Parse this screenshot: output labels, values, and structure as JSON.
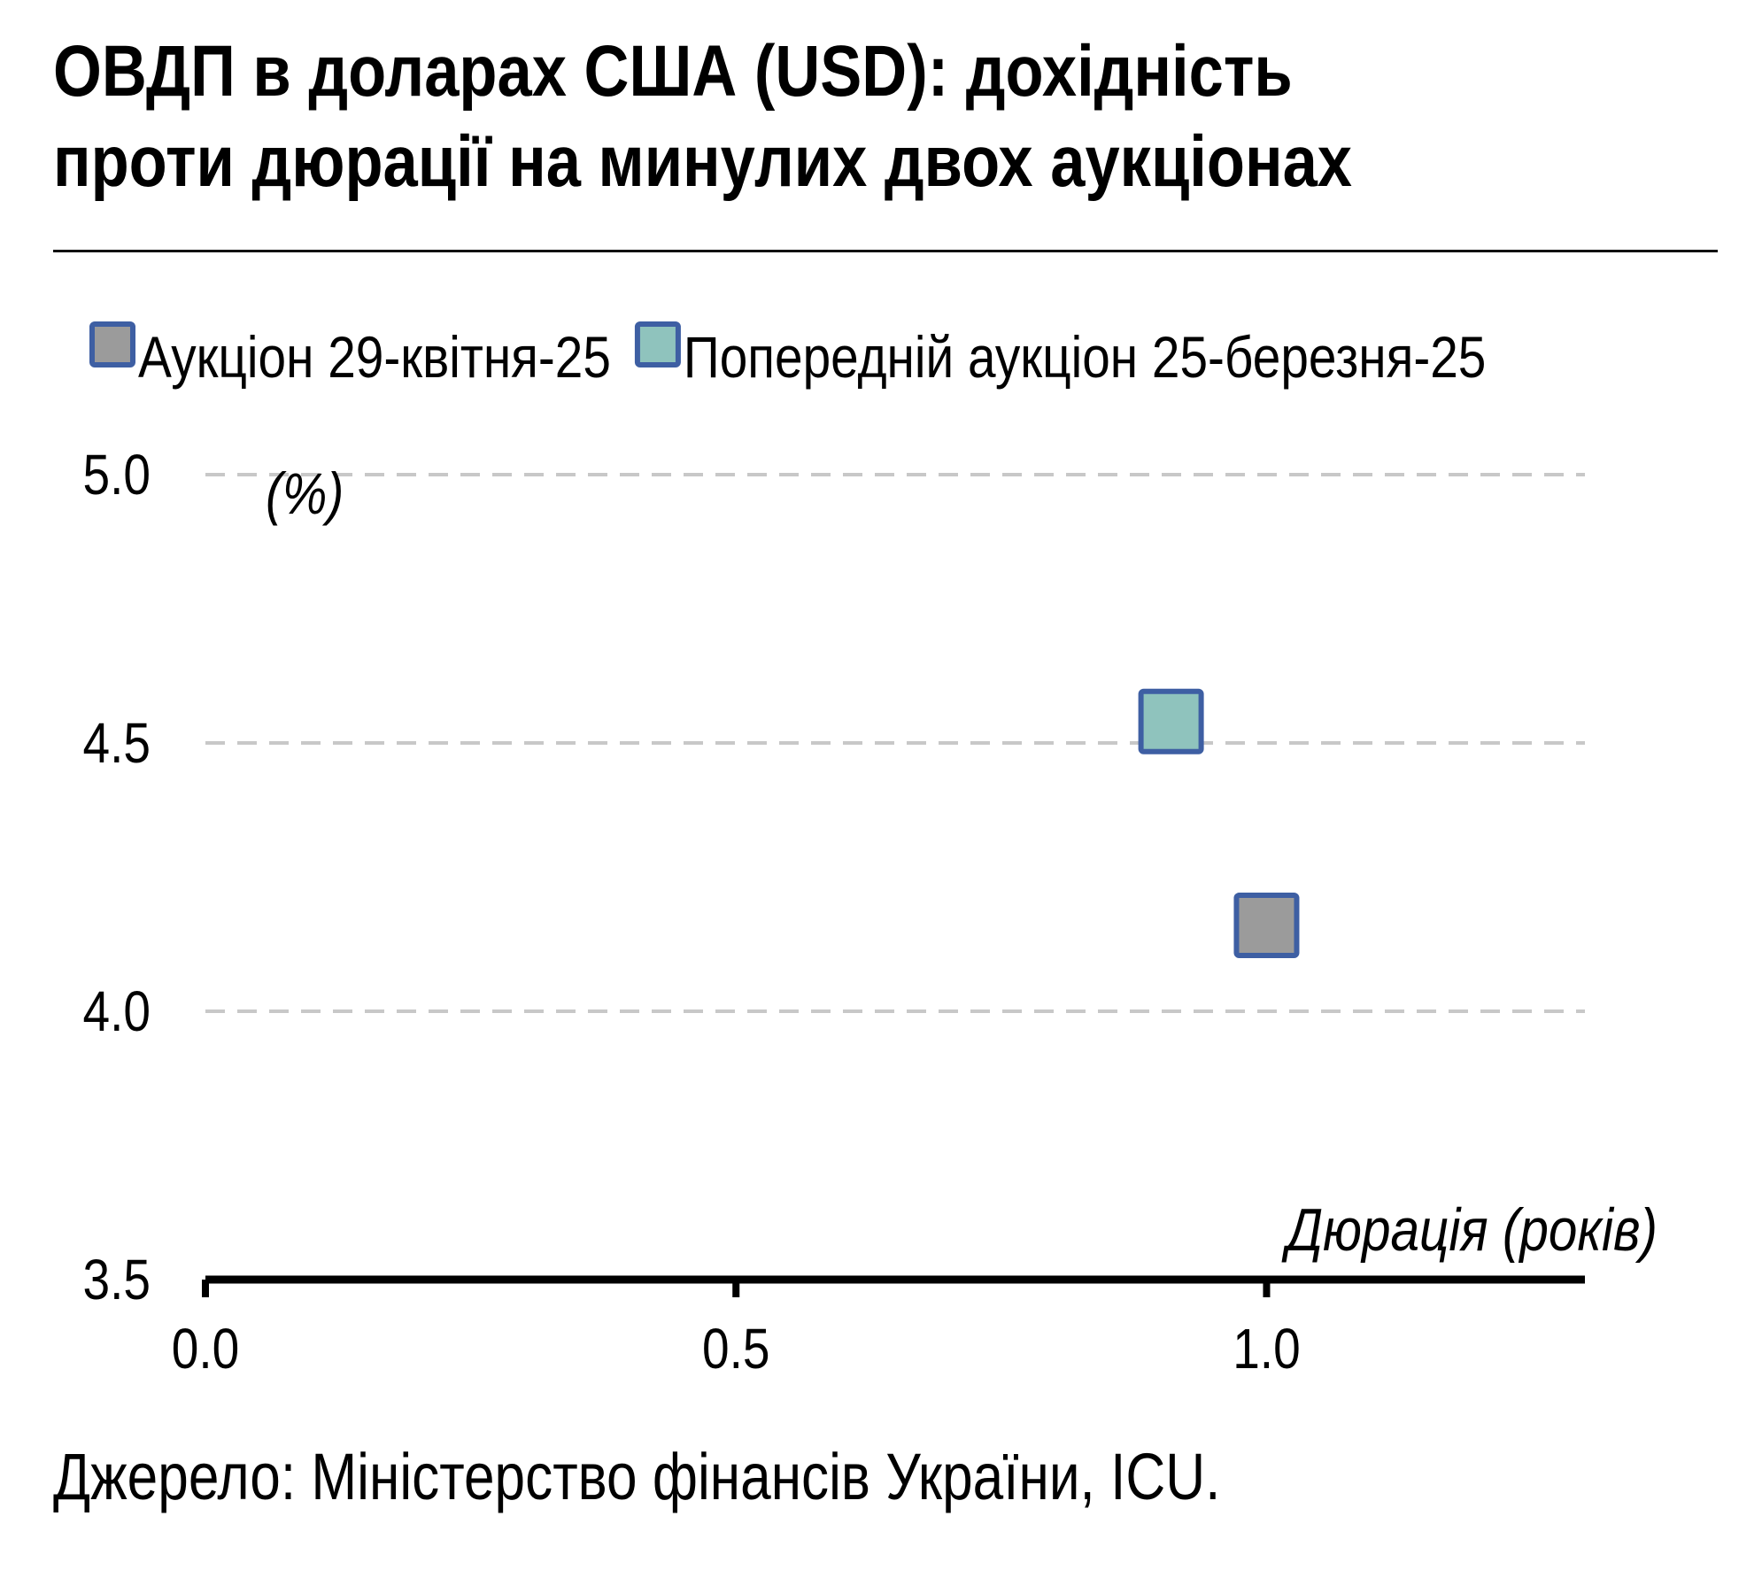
{
  "title": "ОВДП в доларах США (USD): дохідність проти дюрації на минулих двох аукціонах",
  "source": "Джерело: Міністерство фінансів України, ICU.",
  "chart_data": {
    "type": "scatter",
    "xlabel": "Дюрація (років)",
    "ylabel": "(%)",
    "xlim": [
      0,
      1.3
    ],
    "ylim": [
      3.5,
      5.0
    ],
    "x_ticks": [
      "0.0",
      "0.5",
      "1.0"
    ],
    "y_ticks": [
      "3.5",
      "4.0",
      "4.5",
      "5.0"
    ],
    "grid": "horizontal dashed",
    "legend": "top",
    "series": [
      {
        "name": "Аукціон 29-квітня-25",
        "color": "#9b9b9b",
        "edge": "#3e5fa3",
        "points": [
          {
            "x": 1.0,
            "y": 4.16
          }
        ]
      },
      {
        "name": "Попередній аукціон 25-березня-25",
        "color": "#8fc3bd",
        "edge": "#3e5fa3",
        "points": [
          {
            "x": 0.91,
            "y": 4.54
          }
        ]
      }
    ]
  }
}
